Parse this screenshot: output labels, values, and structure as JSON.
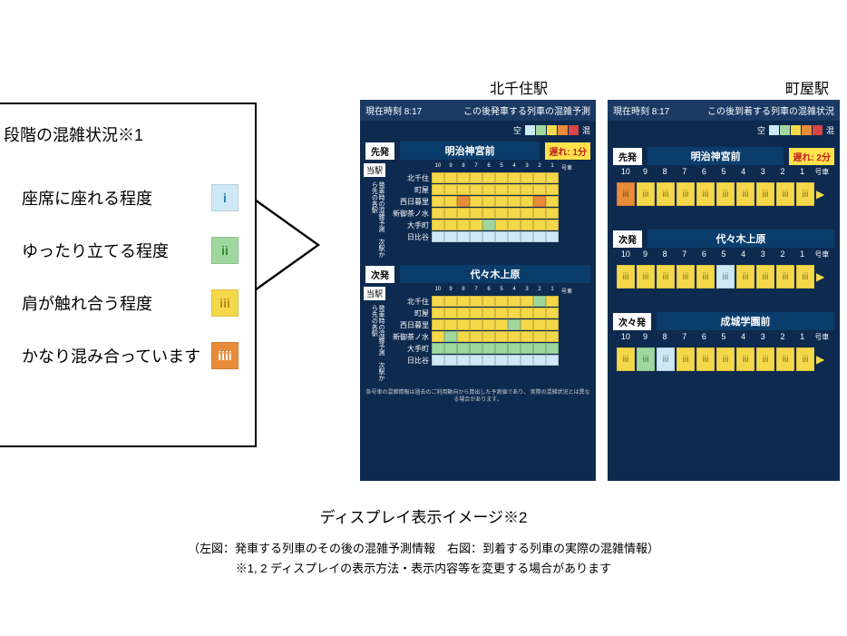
{
  "colors": {
    "level1": "#cfe8f5",
    "level2": "#9fd89f",
    "level3": "#f5d84a",
    "level4": "#e88b3a",
    "level5": "#d94545",
    "panel_bg": "#0e2a4f",
    "header_bg": "#1a3a63",
    "dest_bg": "#0a3d6b",
    "delay_bg": "#ffe24a",
    "delay_fg": "#c02020"
  },
  "legend": {
    "title": "段階の混雑状況※1",
    "items": [
      {
        "text": "座席に座れる程度",
        "glyph": "i",
        "bg": "#cfe8f5",
        "fg": "#2a7db8"
      },
      {
        "text": "ゆったり立てる程度",
        "glyph": "ii",
        "bg": "#9fd89f",
        "fg": "#2a8a2a"
      },
      {
        "text": "肩が触れ合う程度",
        "glyph": "iii",
        "bg": "#f5d84a",
        "fg": "#b58a1a"
      },
      {
        "text": "かなり混み合っています",
        "glyph": "iiii",
        "bg": "#e88b3a",
        "fg": "#ffffff"
      }
    ]
  },
  "scale": {
    "empty_label": "空",
    "full_label": "混",
    "swatches": [
      "#cfe8f5",
      "#9fd89f",
      "#f5d84a",
      "#e88b3a",
      "#d94545"
    ]
  },
  "left_panel": {
    "station_label": "北千住駅",
    "time_label": "現在時刻 8:17",
    "header_text": "この後発車する列車の混雑予測",
    "car_numbers": [
      "10",
      "9",
      "8",
      "7",
      "6",
      "5",
      "4",
      "3",
      "2",
      "1"
    ],
    "car_suffix": "号車",
    "labels": {
      "sen": "先発",
      "ji": "次発",
      "toueki": "当駅",
      "vert": "発車時の混雑予測　次駅から先の各駅"
    },
    "sections": [
      {
        "tag": "先発",
        "dest": "明治神宮前",
        "delay": "遅れ: 1分",
        "rows": [
          {
            "name": "北千住",
            "cars": [
              3,
              3,
              3,
              3,
              3,
              3,
              3,
              3,
              3,
              3
            ]
          },
          {
            "name": "町屋",
            "cars": [
              3,
              3,
              3,
              3,
              3,
              3,
              3,
              3,
              3,
              3
            ]
          },
          {
            "name": "西日暮里",
            "cars": [
              3,
              3,
              4,
              3,
              3,
              3,
              3,
              3,
              4,
              3
            ]
          },
          {
            "name": "新御茶ノ水",
            "cars": [
              3,
              3,
              3,
              3,
              3,
              3,
              3,
              3,
              3,
              3
            ]
          },
          {
            "name": "大手町",
            "cars": [
              3,
              3,
              3,
              3,
              2,
              3,
              3,
              3,
              3,
              3
            ]
          },
          {
            "name": "日比谷",
            "cars": [
              1,
              1,
              1,
              1,
              1,
              1,
              1,
              1,
              1,
              1
            ]
          }
        ]
      },
      {
        "tag": "次発",
        "dest": "代々木上原",
        "delay": "",
        "rows": [
          {
            "name": "北千住",
            "cars": [
              3,
              3,
              3,
              3,
              3,
              3,
              3,
              3,
              2,
              3
            ]
          },
          {
            "name": "町屋",
            "cars": [
              3,
              3,
              3,
              3,
              3,
              3,
              3,
              3,
              3,
              3
            ]
          },
          {
            "name": "西日暮里",
            "cars": [
              3,
              3,
              3,
              3,
              3,
              3,
              2,
              3,
              3,
              3
            ]
          },
          {
            "name": "新御茶ノ水",
            "cars": [
              3,
              2,
              3,
              3,
              3,
              3,
              3,
              3,
              3,
              3
            ]
          },
          {
            "name": "大手町",
            "cars": [
              2,
              2,
              2,
              2,
              2,
              2,
              2,
              2,
              2,
              2
            ]
          },
          {
            "name": "日比谷",
            "cars": [
              1,
              1,
              1,
              1,
              1,
              1,
              1,
              1,
              1,
              1
            ]
          }
        ]
      }
    ],
    "footnote": "各号車の混雑情報は過去のご利用動向から算出した予測値であり、\n実際の混雑状況とは異なる場合があります。"
  },
  "right_panel": {
    "station_label": "町屋駅",
    "time_label": "現在時刻 8:17",
    "header_text": "この後到着する列車の混雑状況",
    "car_numbers": [
      "10",
      "9",
      "8",
      "7",
      "6",
      "5",
      "4",
      "3",
      "2",
      "1"
    ],
    "car_suffix": "号車",
    "trains": [
      {
        "tag": "先発",
        "dest": "明治神宮前",
        "delay": "遅れ: 2分",
        "cars": [
          4,
          3,
          3,
          3,
          3,
          3,
          3,
          3,
          3,
          3
        ]
      },
      {
        "tag": "次発",
        "dest": "代々木上原",
        "delay": "",
        "cars": [
          3,
          3,
          3,
          3,
          3,
          1,
          3,
          3,
          3,
          3
        ]
      },
      {
        "tag": "次々発",
        "dest": "成城学園前",
        "delay": "",
        "cars": [
          3,
          2,
          1,
          3,
          3,
          3,
          3,
          3,
          3,
          3
        ]
      }
    ]
  },
  "captions": {
    "main": "ディスプレイ表示イメージ※2",
    "sub1": "（左図：発車する列車のその後の混雑予測情報　右図：到着する列車の実際の混雑情報）",
    "sub2": "※1, 2 ディスプレイの表示方法・表示内容等を変更する場合があります"
  }
}
